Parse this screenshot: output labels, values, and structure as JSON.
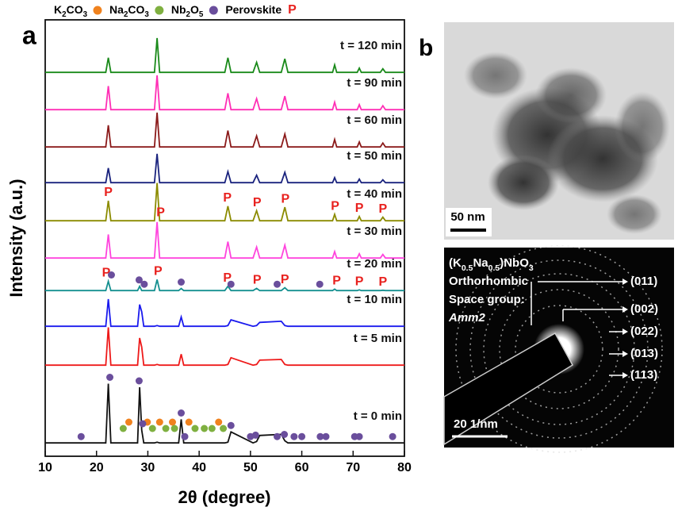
{
  "chart_data": {
    "type": "line",
    "panel_label": "a",
    "x_label": "2θ (degree)",
    "y_label": "Intensity (a.u.)",
    "xlim": [
      10,
      80
    ],
    "xticks": [
      10,
      20,
      30,
      40,
      50,
      60,
      70,
      80
    ],
    "ylim": [
      0,
      100
    ],
    "phases": [
      {
        "name": "K2CO3",
        "color": "#f0821e"
      },
      {
        "name": "Na2CO3",
        "color": "#7fb040"
      },
      {
        "name": "Nb2O5",
        "color": "#6a4e9c"
      },
      {
        "name": "Perovskite",
        "color": "#e8211e",
        "symbol": "P"
      }
    ],
    "x": [
      10,
      20,
      21.8,
      22.3,
      22.8,
      28,
      28.4,
      28.8,
      29.2,
      31.3,
      31.8,
      32.3,
      36,
      36.5,
      37,
      45,
      45.6,
      46.2,
      50.5,
      51.2,
      51.8,
      56,
      56.7,
      57.3,
      66,
      66.4,
      66.8,
      70.8,
      71.2,
      71.6,
      75.3,
      75.8,
      76.3,
      80
    ],
    "series": [
      {
        "name": "t = 120 min",
        "color": "#1a8a1a",
        "values": [
          4,
          4,
          4,
          45,
          4,
          4,
          4,
          4,
          4,
          4,
          100,
          4,
          4,
          4,
          4,
          4,
          45,
          4,
          4,
          32,
          4,
          4,
          42,
          4,
          4,
          25,
          4,
          4,
          16,
          4,
          4,
          14,
          4,
          4
        ]
      },
      {
        "name": "t = 90 min",
        "color": "#ff2fb5",
        "values": [
          4,
          4,
          4,
          70,
          4,
          4,
          4,
          4,
          4,
          4,
          100,
          4,
          4,
          4,
          4,
          4,
          50,
          4,
          4,
          35,
          4,
          4,
          42,
          4,
          4,
          25,
          4,
          4,
          18,
          4,
          4,
          15,
          4,
          4
        ]
      },
      {
        "name": "t = 60 min",
        "color": "#8b1a1a",
        "values": [
          4,
          4,
          4,
          65,
          4,
          4,
          4,
          4,
          4,
          4,
          100,
          4,
          4,
          4,
          4,
          4,
          50,
          4,
          4,
          35,
          4,
          4,
          40,
          4,
          4,
          25,
          4,
          4,
          18,
          4,
          4,
          15,
          4,
          4
        ]
      },
      {
        "name": "t = 50 min",
        "color": "#1a237e",
        "values": [
          4,
          4,
          4,
          45,
          4,
          4,
          4,
          4,
          4,
          4,
          85,
          4,
          4,
          4,
          4,
          4,
          35,
          4,
          4,
          25,
          4,
          4,
          33,
          4,
          4,
          18,
          4,
          4,
          14,
          4,
          4,
          12,
          4,
          4
        ]
      },
      {
        "name": "t = 40 min",
        "color": "#8b8b00",
        "values": [
          4,
          4,
          4,
          60,
          4,
          4,
          4,
          4,
          4,
          4,
          110,
          4,
          4,
          4,
          4,
          4,
          45,
          4,
          4,
          32,
          4,
          4,
          42,
          4,
          4,
          22,
          4,
          4,
          16,
          4,
          4,
          14,
          4,
          4
        ],
        "p_marks": [
          22.3,
          32.5,
          45.5,
          51.3,
          56.8,
          66.5,
          71.2,
          75.8
        ]
      },
      {
        "name": "t = 30 min",
        "color": "#ff44dd",
        "values": [
          4,
          4,
          4,
          70,
          4,
          4,
          4,
          4,
          4,
          4,
          105,
          4,
          4,
          4,
          4,
          4,
          50,
          4,
          4,
          35,
          4,
          4,
          40,
          4,
          4,
          22,
          4,
          4,
          16,
          4,
          4,
          14,
          4,
          4
        ]
      },
      {
        "name": "t = 20 min",
        "color": "#159090",
        "values": [
          4,
          4,
          4,
          30,
          4,
          4,
          16,
          4,
          4,
          4,
          35,
          4,
          4,
          10,
          4,
          4,
          16,
          4,
          4,
          10,
          4,
          4,
          12,
          4,
          4,
          8,
          4,
          4,
          6,
          4,
          4,
          5,
          4,
          4
        ],
        "p_marks": [
          21.9,
          32,
          45.5,
          51.3,
          56.7,
          66.8,
          71.2,
          75.8
        ],
        "phase_marks": [
          [],
          [],
          [
            22.9,
            28.3,
            29.3,
            36.5,
            46.2,
            55.2,
            63.5
          ]
        ]
      },
      {
        "name": "t = 10 min",
        "color": "#1a1aee",
        "values": [
          4,
          4,
          4,
          80,
          4,
          4,
          65,
          45,
          4,
          4,
          6,
          4,
          4,
          30,
          4,
          4,
          6,
          22,
          4,
          6,
          15,
          18,
          6,
          4,
          4,
          4,
          4,
          4,
          4,
          4,
          4,
          4,
          4,
          4
        ]
      },
      {
        "name": "t = 5 min",
        "color": "#ee1a1a",
        "values": [
          4,
          4,
          4,
          110,
          4,
          4,
          80,
          55,
          4,
          4,
          6,
          4,
          4,
          35,
          4,
          4,
          6,
          25,
          4,
          6,
          18,
          20,
          6,
          4,
          4,
          4,
          4,
          4,
          4,
          4,
          4,
          4,
          4,
          4
        ]
      },
      {
        "name": "t = 0 min",
        "color": "#111111",
        "values": [
          4,
          4,
          4,
          170,
          4,
          4,
          160,
          40,
          4,
          4,
          6,
          4,
          4,
          70,
          4,
          4,
          6,
          35,
          4,
          8,
          25,
          28,
          10,
          4,
          4,
          4,
          4,
          4,
          4,
          4,
          4,
          4,
          4,
          4
        ],
        "phase_marks": [
          [
            26.3,
            29.9,
            32.3,
            34.8,
            38,
            43.8
          ],
          [
            25.2,
            30.9,
            33.5,
            35.2,
            39.2,
            41,
            42.5,
            44.7
          ],
          [
            17,
            22.6,
            28.3,
            29,
            36.5,
            37.2,
            46.2,
            50,
            51,
            55.2,
            56.6,
            58.5,
            60,
            63.6,
            64.7,
            70.3,
            71.2,
            77.7
          ]
        ]
      }
    ]
  },
  "panel_b": {
    "label": "b",
    "tem_scale": "50 nm",
    "saed": {
      "formula": "(K0.5Na0.5)NbO3",
      "crystal": "Orthorhombic",
      "space_group_label": "Space group:",
      "space_group": "Amm2",
      "planes": [
        "(011)",
        "(002)",
        "(022)",
        "(013)",
        "(113)"
      ],
      "scale": "20 1/nm"
    }
  }
}
